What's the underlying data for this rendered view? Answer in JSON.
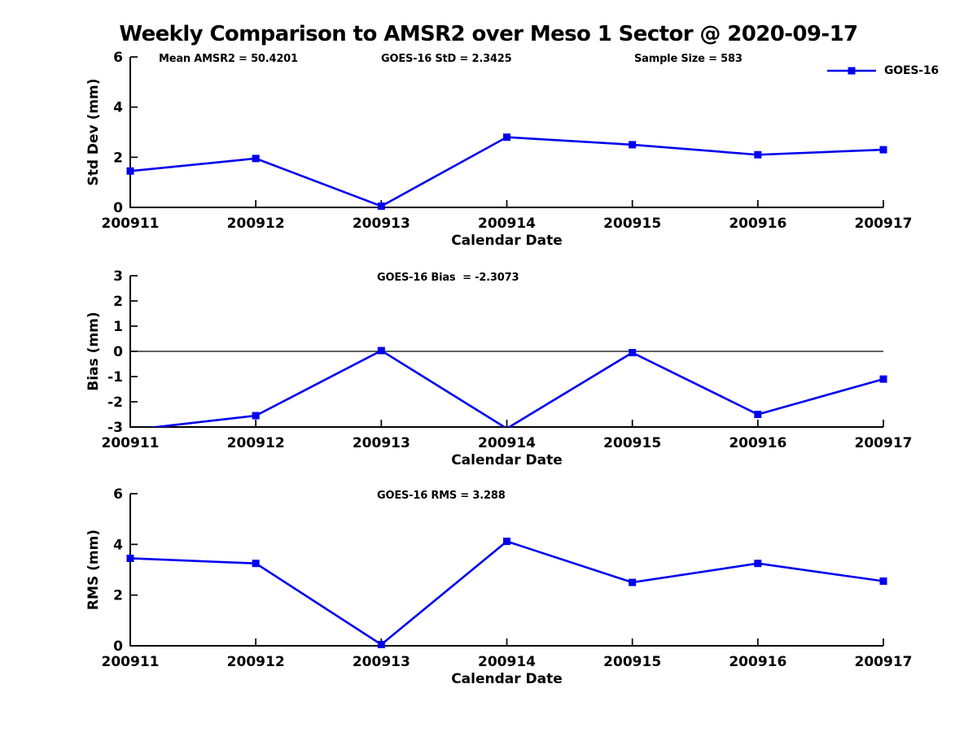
{
  "title": "Weekly Comparison to AMSR2 over Meso 1 Sector @ 2020-09-17",
  "legend": {
    "label": "GOES-16"
  },
  "colors": {
    "series": "#0000EE",
    "axis": "#000000",
    "text": "#000000",
    "background": "#FFFFFF"
  },
  "chart_data": [
    {
      "type": "line",
      "name": "std-dev",
      "title": "",
      "xlabel": "Calendar Date",
      "ylabel": "Std Dev (mm)",
      "categories": [
        "200911",
        "200912",
        "200913",
        "200914",
        "200915",
        "200916",
        "200917"
      ],
      "series": [
        {
          "name": "GOES-16",
          "values": [
            1.45,
            1.95,
            0.05,
            2.8,
            2.5,
            2.1,
            2.3
          ]
        }
      ],
      "ylim": [
        0,
        6
      ],
      "yticks": [
        0,
        2,
        4,
        6
      ],
      "annotations": [
        "Mean AMSR2 = 50.4201",
        "GOES-16 StD = 2.3425",
        "Sample Size = 583"
      ],
      "zero_line": false,
      "grid": false,
      "legend_position": "top-right"
    },
    {
      "type": "line",
      "name": "bias",
      "title": "",
      "xlabel": "Calendar Date",
      "ylabel": "Bias (mm)",
      "categories": [
        "200911",
        "200912",
        "200913",
        "200914",
        "200915",
        "200916",
        "200917"
      ],
      "series": [
        {
          "name": "GOES-16",
          "values": [
            -3.12,
            -2.55,
            0.03,
            -3.06,
            -0.05,
            -2.5,
            -1.1
          ]
        }
      ],
      "ylim": [
        -3,
        3
      ],
      "yticks": [
        -3,
        -2,
        -1,
        0,
        1,
        2,
        3
      ],
      "annotations": [
        "GOES-16 Bias  = -2.3073"
      ],
      "zero_line": true,
      "grid": false,
      "legend_position": "none"
    },
    {
      "type": "line",
      "name": "rms",
      "title": "",
      "xlabel": "Calendar Date",
      "ylabel": "RMS (mm)",
      "categories": [
        "200911",
        "200912",
        "200913",
        "200914",
        "200915",
        "200916",
        "200917"
      ],
      "series": [
        {
          "name": "GOES-16",
          "values": [
            3.45,
            3.25,
            0.05,
            4.12,
            2.5,
            3.25,
            2.55
          ]
        }
      ],
      "ylim": [
        0,
        6
      ],
      "yticks": [
        0,
        2,
        4,
        6
      ],
      "annotations": [
        "GOES-16 RMS = 3.288"
      ],
      "zero_line": false,
      "grid": false,
      "legend_position": "none"
    }
  ]
}
